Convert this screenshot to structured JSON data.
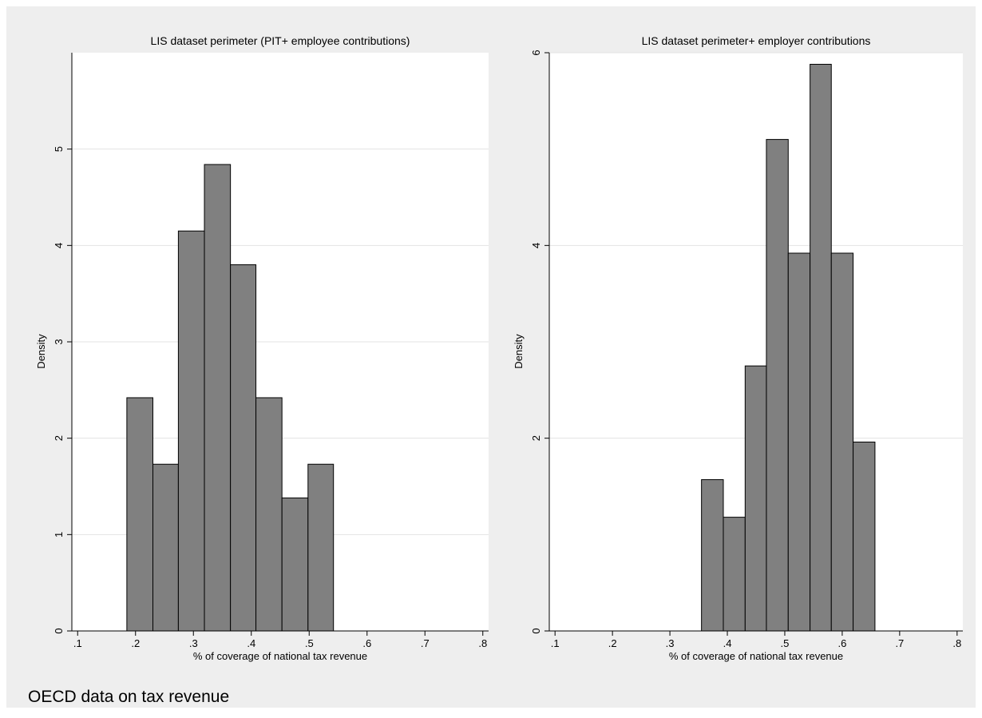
{
  "note": "OECD data on tax revenue",
  "chart_data": [
    {
      "type": "bar",
      "title": "LIS dataset perimeter (PIT+ employee contributions)",
      "xlabel": "% of coverage of national tax revenue",
      "ylabel": "Density",
      "xlim": [
        0.09,
        0.81
      ],
      "ylim": [
        0,
        6
      ],
      "xticks": [
        ".1",
        ".2",
        ".3",
        ".4",
        ".5",
        ".6",
        ".7",
        ".8"
      ],
      "xtick_values": [
        0.1,
        0.2,
        0.3,
        0.4,
        0.5,
        0.6,
        0.7,
        0.8
      ],
      "yticks": [
        "0",
        "1",
        "2",
        "3",
        "4",
        "5"
      ],
      "ytick_values": [
        0,
        1,
        2,
        3,
        4,
        5
      ],
      "grid": true,
      "bar_color": "#808080",
      "bins": [
        {
          "start": 0.185,
          "end": 0.23,
          "value": 2.42
        },
        {
          "start": 0.23,
          "end": 0.274,
          "value": 1.73
        },
        {
          "start": 0.274,
          "end": 0.319,
          "value": 4.15
        },
        {
          "start": 0.319,
          "end": 0.364,
          "value": 4.84
        },
        {
          "start": 0.364,
          "end": 0.408,
          "value": 3.8
        },
        {
          "start": 0.408,
          "end": 0.453,
          "value": 2.42
        },
        {
          "start": 0.453,
          "end": 0.498,
          "value": 1.38
        },
        {
          "start": 0.498,
          "end": 0.542,
          "value": 1.73
        }
      ]
    },
    {
      "type": "bar",
      "title": "LIS dataset perimeter+ employer contributions",
      "xlabel": "% of coverage of national tax revenue",
      "ylabel": "Density",
      "xlim": [
        0.09,
        0.81
      ],
      "ylim": [
        0,
        6
      ],
      "xticks": [
        ".1",
        ".2",
        ".3",
        ".4",
        ".5",
        ".6",
        ".7",
        ".8"
      ],
      "xtick_values": [
        0.1,
        0.2,
        0.3,
        0.4,
        0.5,
        0.6,
        0.7,
        0.8
      ],
      "yticks": [
        "0",
        "2",
        "4",
        "6"
      ],
      "ytick_values": [
        0,
        2,
        4,
        6
      ],
      "grid": true,
      "bar_color": "#808080",
      "bins": [
        {
          "start": 0.355,
          "end": 0.393,
          "value": 1.57
        },
        {
          "start": 0.393,
          "end": 0.431,
          "value": 1.18
        },
        {
          "start": 0.431,
          "end": 0.468,
          "value": 2.75
        },
        {
          "start": 0.468,
          "end": 0.506,
          "value": 5.1
        },
        {
          "start": 0.506,
          "end": 0.544,
          "value": 3.92
        },
        {
          "start": 0.544,
          "end": 0.581,
          "value": 5.88
        },
        {
          "start": 0.581,
          "end": 0.619,
          "value": 3.92
        },
        {
          "start": 0.619,
          "end": 0.657,
          "value": 1.96
        }
      ]
    }
  ]
}
